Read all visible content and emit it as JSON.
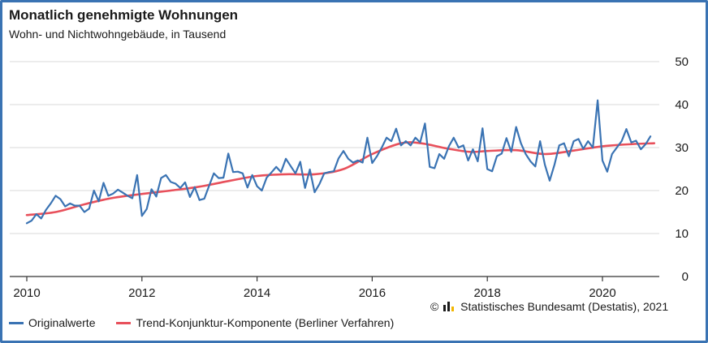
{
  "header": {
    "title": "Monatlich genehmigte Wohnungen",
    "subtitle": "Wohn- und Nichtwohngebäude, in Tausend"
  },
  "source": {
    "copyright_symbol": "©",
    "text": "Statistisches Bundesamt (Destatis), 2021"
  },
  "legend": {
    "items": [
      {
        "label": "Originalwerte",
        "color": "#3a73b3"
      },
      {
        "label": "Trend-Konjunktur-Komponente (Berliner Verfahren)",
        "color": "#e8505b"
      }
    ]
  },
  "chart_data": {
    "type": "line",
    "title": "Monatlich genehmigte Wohnungen",
    "subtitle": "Wohn- und Nichtwohngebäude, in Tausend",
    "xlabel": "",
    "ylabel": "",
    "xlim": [
      2010,
      2020.9
    ],
    "ylim": [
      0,
      50
    ],
    "x_ticks": [
      2010,
      2012,
      2014,
      2016,
      2018,
      2020
    ],
    "y_ticks": [
      0,
      10,
      20,
      30,
      40,
      50
    ],
    "y_axis_side": "right",
    "grid": "horizontal",
    "legend_position": "bottom-left",
    "series": [
      {
        "name": "Originalwerte",
        "color": "#3a73b3",
        "x_start": 2010.0,
        "x_step_months": 1,
        "values": [
          12.4,
          13.0,
          14.5,
          13.5,
          15.5,
          17.0,
          18.8,
          18.0,
          16.3,
          17.0,
          16.5,
          16.5,
          15.0,
          15.8,
          20.0,
          17.5,
          21.8,
          18.8,
          19.3,
          20.2,
          19.5,
          18.8,
          18.2,
          23.6,
          14.1,
          15.7,
          20.3,
          18.6,
          22.9,
          23.6,
          22.0,
          21.6,
          20.6,
          21.9,
          18.5,
          20.8,
          17.8,
          18.1,
          21.1,
          24.0,
          22.9,
          23.0,
          28.6,
          24.3,
          24.4,
          24.0,
          20.7,
          23.6,
          21.0,
          20.0,
          23.0,
          24.2,
          25.5,
          24.3,
          27.4,
          25.7,
          24.0,
          26.7,
          20.6,
          24.9,
          19.6,
          21.5,
          24.0,
          24.3,
          24.5,
          27.5,
          29.2,
          27.4,
          26.5,
          27.0,
          26.5,
          32.3,
          26.4,
          28.0,
          30.0,
          32.3,
          31.5,
          34.4,
          30.5,
          31.5,
          30.5,
          32.3,
          31.2,
          35.6,
          25.5,
          25.2,
          28.5,
          27.4,
          30.3,
          32.3,
          30.0,
          30.5,
          27.0,
          29.6,
          26.8,
          34.5,
          25.0,
          24.5,
          28.0,
          28.6,
          32.2,
          29.0,
          34.8,
          31.0,
          28.5,
          26.8,
          25.6,
          31.5,
          26.0,
          22.3,
          26.0,
          30.5,
          31.0,
          28.0,
          31.5,
          32.0,
          29.7,
          31.5,
          30.0,
          41.0,
          27.0,
          24.4,
          28.5,
          30.0,
          31.5,
          34.3,
          31.2,
          31.6,
          29.6,
          30.8,
          32.6
        ]
      },
      {
        "name": "Trend-Konjunktur-Komponente (Berliner Verfahren)",
        "color": "#e8505b",
        "points": [
          [
            2010.0,
            14.3
          ],
          [
            2010.5,
            15.0
          ],
          [
            2011.0,
            16.8
          ],
          [
            2011.5,
            18.3
          ],
          [
            2012.0,
            19.2
          ],
          [
            2012.5,
            20.0
          ],
          [
            2013.0,
            20.9
          ],
          [
            2013.5,
            22.2
          ],
          [
            2014.0,
            23.4
          ],
          [
            2014.5,
            23.8
          ],
          [
            2015.0,
            23.8
          ],
          [
            2015.5,
            25.0
          ],
          [
            2016.0,
            28.5
          ],
          [
            2016.5,
            31.0
          ],
          [
            2016.85,
            31.0
          ],
          [
            2017.3,
            29.8
          ],
          [
            2017.7,
            29.0
          ],
          [
            2018.0,
            29.2
          ],
          [
            2018.5,
            29.4
          ],
          [
            2019.0,
            28.5
          ],
          [
            2019.5,
            29.3
          ],
          [
            2020.0,
            30.3
          ],
          [
            2020.5,
            30.8
          ],
          [
            2020.9,
            31.0
          ]
        ]
      }
    ]
  }
}
